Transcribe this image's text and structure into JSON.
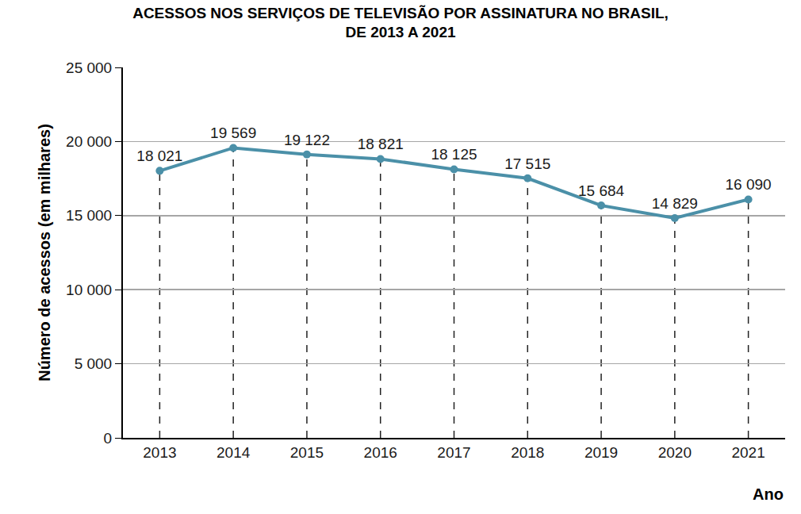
{
  "chart_data": {
    "type": "line",
    "title": "ACESSOS NOS SERVIÇOS DE TELEVISÃO POR ASSINATURA NO BRASIL,\nDE 2013 A 2021",
    "x_label": "Ano",
    "y_label": "Número de acessos (em milhares)",
    "categories": [
      "2013",
      "2014",
      "2015",
      "2016",
      "2017",
      "2018",
      "2019",
      "2020",
      "2021"
    ],
    "values": [
      18021,
      19569,
      19122,
      18821,
      18125,
      17515,
      15684,
      14829,
      16090
    ],
    "value_labels": [
      "18 021",
      "19 569",
      "19 122",
      "18 821",
      "18 125",
      "17 515",
      "15 684",
      "14 829",
      "16 090"
    ],
    "color": "#4b90a8",
    "marker": "circle",
    "data_labels": true,
    "grid": true,
    "ylim": [
      0,
      25000
    ],
    "yticks": [
      0,
      {
        "value": 5000,
        "label": "5 000"
      },
      {
        "value": 10000,
        "label": "10 000"
      },
      {
        "value": 15000,
        "label": "15 000"
      },
      {
        "value": 20000,
        "label": "20 000"
      },
      {
        "value": 25000,
        "label": "25 000"
      }
    ]
  }
}
